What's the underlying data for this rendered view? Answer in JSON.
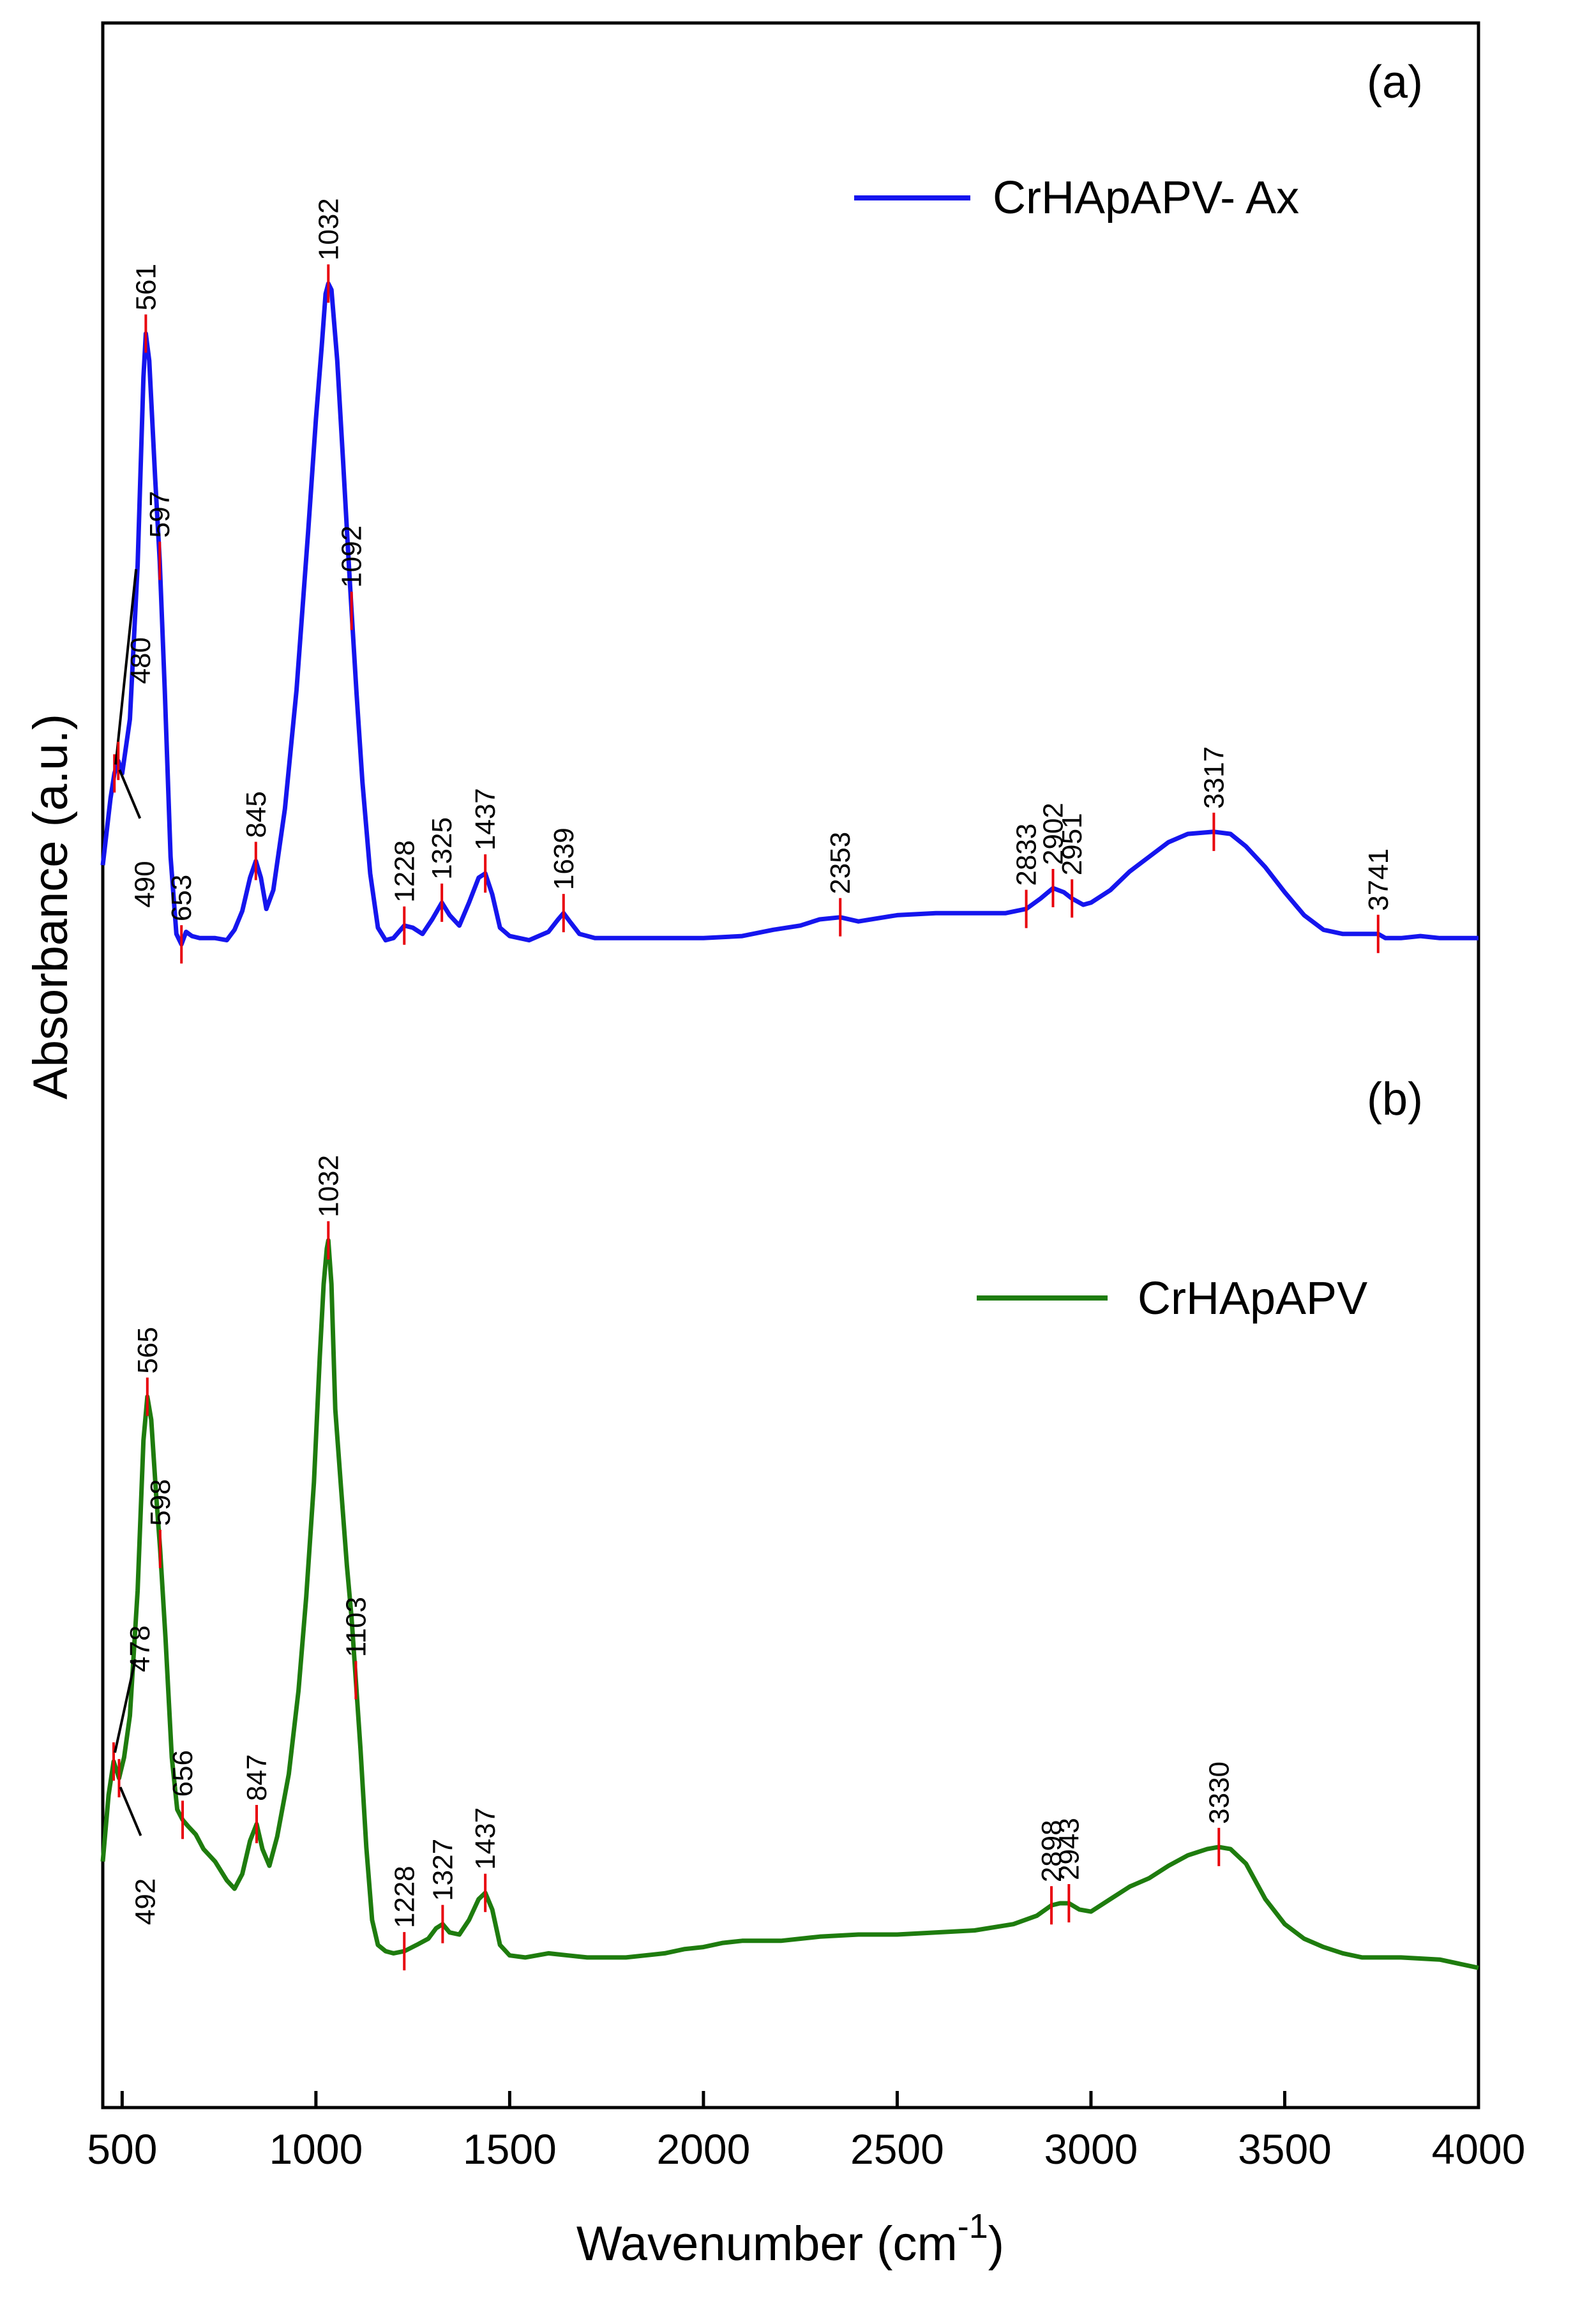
{
  "chart_data": {
    "type": "line",
    "title": "",
    "xlabel": "Wavenumber (cm",
    "xlabel_sup": "-1",
    "xlabel_close": ")",
    "ylabel": "Absorbance (a.u.)",
    "xlim": [
      450,
      4000
    ],
    "ylim": [
      0,
      1
    ],
    "y_ticks_shown": false,
    "x_ticks": [
      500,
      1000,
      1500,
      2000,
      2500,
      3000,
      3500,
      4000
    ],
    "x_tick_labels": [
      "500",
      "1000",
      "1500",
      "2000",
      "2500",
      "3000",
      "3500",
      "4000"
    ],
    "series": [
      {
        "name": "CrHApAPV- Ax",
        "panel_label": "(a)",
        "color": "#1515ee",
        "points": [
          [
            450,
            0.596
          ],
          [
            470,
            0.628
          ],
          [
            480,
            0.64
          ],
          [
            490,
            0.646
          ],
          [
            500,
            0.64
          ],
          [
            520,
            0.666
          ],
          [
            540,
            0.74
          ],
          [
            555,
            0.83
          ],
          [
            561,
            0.851
          ],
          [
            570,
            0.838
          ],
          [
            585,
            0.782
          ],
          [
            597,
            0.742
          ],
          [
            610,
            0.68
          ],
          [
            625,
            0.6
          ],
          [
            640,
            0.563
          ],
          [
            653,
            0.558
          ],
          [
            665,
            0.564
          ],
          [
            680,
            0.562
          ],
          [
            700,
            0.561
          ],
          [
            740,
            0.561
          ],
          [
            770,
            0.56
          ],
          [
            790,
            0.565
          ],
          [
            810,
            0.574
          ],
          [
            830,
            0.59
          ],
          [
            845,
            0.598
          ],
          [
            858,
            0.59
          ],
          [
            872,
            0.575
          ],
          [
            890,
            0.584
          ],
          [
            920,
            0.623
          ],
          [
            950,
            0.68
          ],
          [
            980,
            0.756
          ],
          [
            1000,
            0.81
          ],
          [
            1015,
            0.845
          ],
          [
            1025,
            0.87
          ],
          [
            1032,
            0.875
          ],
          [
            1040,
            0.872
          ],
          [
            1055,
            0.838
          ],
          [
            1070,
            0.79
          ],
          [
            1085,
            0.74
          ],
          [
            1092,
            0.718
          ],
          [
            1105,
            0.678
          ],
          [
            1120,
            0.636
          ],
          [
            1140,
            0.592
          ],
          [
            1160,
            0.566
          ],
          [
            1180,
            0.56
          ],
          [
            1200,
            0.561
          ],
          [
            1228,
            0.567
          ],
          [
            1250,
            0.566
          ],
          [
            1275,
            0.563
          ],
          [
            1300,
            0.57
          ],
          [
            1325,
            0.578
          ],
          [
            1345,
            0.572
          ],
          [
            1370,
            0.567
          ],
          [
            1395,
            0.578
          ],
          [
            1420,
            0.59
          ],
          [
            1437,
            0.592
          ],
          [
            1455,
            0.582
          ],
          [
            1475,
            0.566
          ],
          [
            1500,
            0.562
          ],
          [
            1550,
            0.56
          ],
          [
            1600,
            0.564
          ],
          [
            1625,
            0.57
          ],
          [
            1639,
            0.573
          ],
          [
            1655,
            0.569
          ],
          [
            1680,
            0.563
          ],
          [
            1720,
            0.561
          ],
          [
            1800,
            0.561
          ],
          [
            1900,
            0.561
          ],
          [
            2000,
            0.561
          ],
          [
            2100,
            0.562
          ],
          [
            2180,
            0.565
          ],
          [
            2250,
            0.567
          ],
          [
            2300,
            0.57
          ],
          [
            2353,
            0.571
          ],
          [
            2400,
            0.569
          ],
          [
            2500,
            0.572
          ],
          [
            2600,
            0.573
          ],
          [
            2700,
            0.573
          ],
          [
            2780,
            0.573
          ],
          [
            2833,
            0.575
          ],
          [
            2870,
            0.58
          ],
          [
            2902,
            0.585
          ],
          [
            2930,
            0.583
          ],
          [
            2951,
            0.58
          ],
          [
            2980,
            0.577
          ],
          [
            3000,
            0.578
          ],
          [
            3050,
            0.584
          ],
          [
            3100,
            0.593
          ],
          [
            3150,
            0.6
          ],
          [
            3200,
            0.607
          ],
          [
            3250,
            0.611
          ],
          [
            3317,
            0.612
          ],
          [
            3360,
            0.611
          ],
          [
            3400,
            0.605
          ],
          [
            3450,
            0.595
          ],
          [
            3500,
            0.583
          ],
          [
            3550,
            0.572
          ],
          [
            3600,
            0.565
          ],
          [
            3650,
            0.563
          ],
          [
            3700,
            0.563
          ],
          [
            3741,
            0.563
          ],
          [
            3760,
            0.561
          ],
          [
            3800,
            0.561
          ],
          [
            3850,
            0.562
          ],
          [
            3900,
            0.561
          ],
          [
            3950,
            0.561
          ],
          [
            4000,
            0.561
          ]
        ],
        "peaks": [
          {
            "label": "480",
            "x": 480,
            "y": 0.64,
            "type": "arrow"
          },
          {
            "label": "490",
            "x": 490,
            "y": 0.646,
            "type": "arrow"
          },
          {
            "label": "561",
            "x": 561,
            "y": 0.851
          },
          {
            "label": "597",
            "x": 597,
            "y": 0.742
          },
          {
            "label": "653",
            "x": 653,
            "y": 0.558
          },
          {
            "label": "845",
            "x": 845,
            "y": 0.598
          },
          {
            "label": "1032",
            "x": 1032,
            "y": 0.875
          },
          {
            "label": "1092",
            "x": 1092,
            "y": 0.718
          },
          {
            "label": "1228",
            "x": 1228,
            "y": 0.567
          },
          {
            "label": "1325",
            "x": 1325,
            "y": 0.578
          },
          {
            "label": "1437",
            "x": 1437,
            "y": 0.592
          },
          {
            "label": "1639",
            "x": 1639,
            "y": 0.573
          },
          {
            "label": "2353",
            "x": 2353,
            "y": 0.571
          },
          {
            "label": "2833",
            "x": 2833,
            "y": 0.575
          },
          {
            "label": "2902",
            "x": 2902,
            "y": 0.585
          },
          {
            "label": "2951",
            "x": 2951,
            "y": 0.58
          },
          {
            "label": "3317",
            "x": 3317,
            "y": 0.612
          },
          {
            "label": "3741",
            "x": 3741,
            "y": 0.563
          }
        ]
      },
      {
        "name": "CrHApAPV",
        "panel_label": "(b)",
        "color": "#1e7c0e",
        "points": [
          [
            450,
            0.118
          ],
          [
            465,
            0.15
          ],
          [
            478,
            0.166
          ],
          [
            492,
            0.158
          ],
          [
            505,
            0.168
          ],
          [
            520,
            0.188
          ],
          [
            540,
            0.248
          ],
          [
            555,
            0.32
          ],
          [
            565,
            0.341
          ],
          [
            575,
            0.33
          ],
          [
            588,
            0.293
          ],
          [
            598,
            0.268
          ],
          [
            612,
            0.225
          ],
          [
            628,
            0.168
          ],
          [
            642,
            0.143
          ],
          [
            656,
            0.138
          ],
          [
            670,
            0.135
          ],
          [
            690,
            0.131
          ],
          [
            710,
            0.124
          ],
          [
            740,
            0.118
          ],
          [
            770,
            0.109
          ],
          [
            790,
            0.105
          ],
          [
            810,
            0.112
          ],
          [
            830,
            0.128
          ],
          [
            847,
            0.136
          ],
          [
            862,
            0.124
          ],
          [
            880,
            0.116
          ],
          [
            900,
            0.13
          ],
          [
            930,
            0.16
          ],
          [
            955,
            0.2
          ],
          [
            975,
            0.245
          ],
          [
            995,
            0.3
          ],
          [
            1010,
            0.36
          ],
          [
            1020,
            0.395
          ],
          [
            1028,
            0.412
          ],
          [
            1032,
            0.416
          ],
          [
            1040,
            0.395
          ],
          [
            1050,
            0.335
          ],
          [
            1065,
            0.297
          ],
          [
            1080,
            0.26
          ],
          [
            1092,
            0.235
          ],
          [
            1103,
            0.205
          ],
          [
            1115,
            0.172
          ],
          [
            1130,
            0.125
          ],
          [
            1145,
            0.09
          ],
          [
            1160,
            0.078
          ],
          [
            1180,
            0.075
          ],
          [
            1200,
            0.074
          ],
          [
            1228,
            0.075
          ],
          [
            1260,
            0.078
          ],
          [
            1290,
            0.081
          ],
          [
            1310,
            0.086
          ],
          [
            1327,
            0.088
          ],
          [
            1345,
            0.084
          ],
          [
            1370,
            0.083
          ],
          [
            1395,
            0.09
          ],
          [
            1420,
            0.1
          ],
          [
            1437,
            0.103
          ],
          [
            1455,
            0.095
          ],
          [
            1475,
            0.078
          ],
          [
            1500,
            0.073
          ],
          [
            1540,
            0.072
          ],
          [
            1600,
            0.074
          ],
          [
            1650,
            0.073
          ],
          [
            1700,
            0.072
          ],
          [
            1800,
            0.072
          ],
          [
            1900,
            0.074
          ],
          [
            1950,
            0.076
          ],
          [
            2000,
            0.077
          ],
          [
            2050,
            0.079
          ],
          [
            2100,
            0.08
          ],
          [
            2200,
            0.08
          ],
          [
            2300,
            0.082
          ],
          [
            2400,
            0.083
          ],
          [
            2500,
            0.083
          ],
          [
            2600,
            0.084
          ],
          [
            2700,
            0.085
          ],
          [
            2800,
            0.088
          ],
          [
            2860,
            0.092
          ],
          [
            2898,
            0.097
          ],
          [
            2920,
            0.098
          ],
          [
            2943,
            0.098
          ],
          [
            2970,
            0.095
          ],
          [
            3000,
            0.094
          ],
          [
            3050,
            0.1
          ],
          [
            3100,
            0.106
          ],
          [
            3150,
            0.11
          ],
          [
            3200,
            0.116
          ],
          [
            3250,
            0.121
          ],
          [
            3300,
            0.124
          ],
          [
            3330,
            0.125
          ],
          [
            3360,
            0.124
          ],
          [
            3400,
            0.117
          ],
          [
            3450,
            0.1
          ],
          [
            3500,
            0.088
          ],
          [
            3550,
            0.081
          ],
          [
            3600,
            0.077
          ],
          [
            3650,
            0.074
          ],
          [
            3700,
            0.072
          ],
          [
            3800,
            0.072
          ],
          [
            3900,
            0.071
          ],
          [
            4000,
            0.067
          ]
        ],
        "peaks": [
          {
            "label": "478",
            "x": 478,
            "y": 0.166,
            "type": "arrow"
          },
          {
            "label": "492",
            "x": 492,
            "y": 0.158,
            "type": "arrow"
          },
          {
            "label": "565",
            "x": 565,
            "y": 0.341
          },
          {
            "label": "598",
            "x": 598,
            "y": 0.268
          },
          {
            "label": "656",
            "x": 656,
            "y": 0.138
          },
          {
            "label": "847",
            "x": 847,
            "y": 0.136
          },
          {
            "label": "1032",
            "x": 1032,
            "y": 0.416
          },
          {
            "label": "1103",
            "x": 1103,
            "y": 0.205
          },
          {
            "label": "1228",
            "x": 1228,
            "y": 0.075
          },
          {
            "label": "1327",
            "x": 1327,
            "y": 0.088
          },
          {
            "label": "1437",
            "x": 1437,
            "y": 0.103
          },
          {
            "label": "2898",
            "x": 2898,
            "y": 0.097
          },
          {
            "label": "2943",
            "x": 2943,
            "y": 0.098
          },
          {
            "label": "3330",
            "x": 3330,
            "y": 0.125
          }
        ]
      }
    ],
    "legend": "inside",
    "grid": false
  },
  "colors": {
    "marker": "#e8000b",
    "axis": "#000000",
    "background": "#ffffff"
  }
}
